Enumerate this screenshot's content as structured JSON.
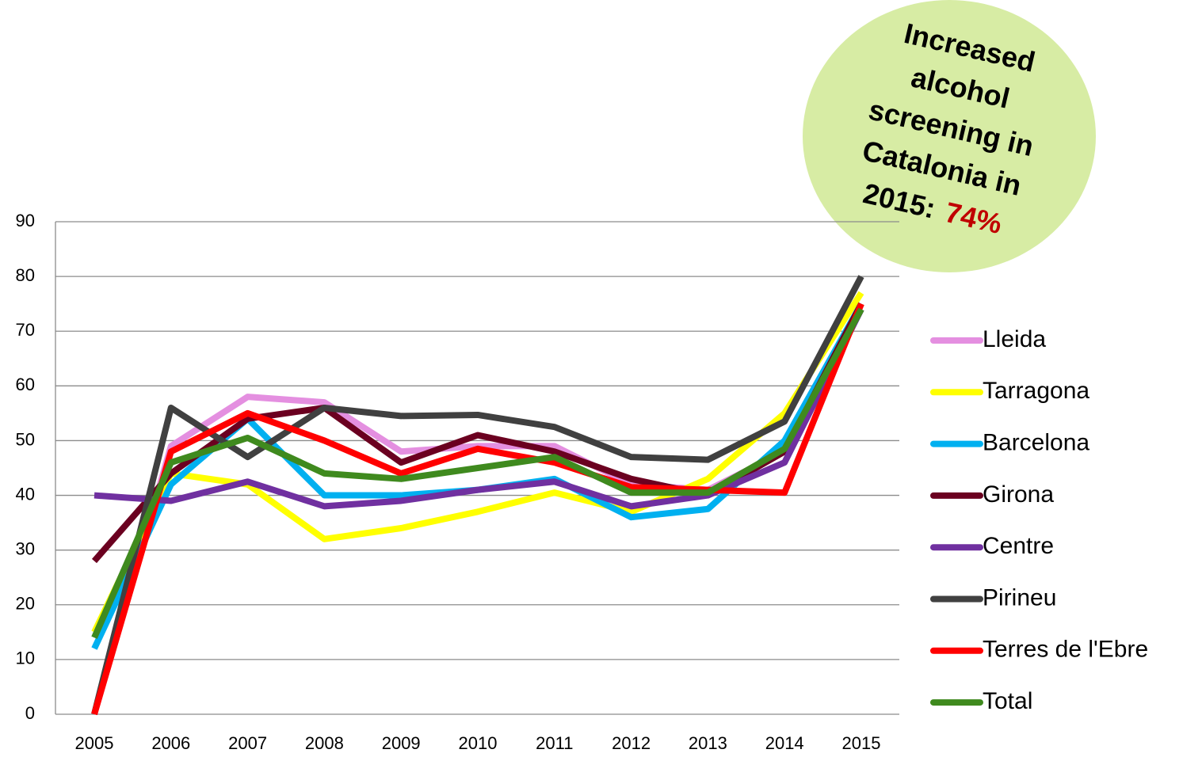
{
  "chart_data": {
    "type": "line",
    "annotation": {
      "lines": [
        "Increased",
        "alcohol",
        "screening in",
        "Catalonia in"
      ],
      "last": "2015:",
      "highlight": "74%"
    },
    "x": [
      "2005",
      "2006",
      "2007",
      "2008",
      "2009",
      "2010",
      "2011",
      "2012",
      "2013",
      "2014",
      "2015"
    ],
    "ylim": [
      0,
      90
    ],
    "yticks": [
      0,
      10,
      20,
      30,
      40,
      50,
      60,
      70,
      80,
      90
    ],
    "grid": true,
    "legend": "right",
    "series": [
      {
        "name": "Lleida",
        "color": "#e48fe0",
        "values": [
          0,
          49,
          58,
          57,
          48,
          49,
          49,
          42,
          41,
          48,
          75
        ]
      },
      {
        "name": "Tarragona",
        "color": "#ffff00",
        "values": [
          15,
          44,
          42,
          32,
          34,
          37,
          40.5,
          37,
          43,
          55,
          77
        ]
      },
      {
        "name": "Barcelona",
        "color": "#00b0f0",
        "values": [
          12,
          42,
          54,
          40,
          40,
          41,
          43,
          36,
          37.5,
          50,
          75
        ]
      },
      {
        "name": "Girona",
        "color": "#6b0020",
        "values": [
          28,
          44,
          54,
          56,
          46,
          51,
          48,
          43,
          40,
          48,
          75
        ]
      },
      {
        "name": "Centre",
        "color": "#7030a0",
        "values": [
          40,
          39,
          42.5,
          38,
          39,
          41,
          42.5,
          38,
          40,
          46,
          74
        ]
      },
      {
        "name": "Pirineu",
        "color": "#404040",
        "values": [
          0,
          56,
          47,
          56,
          54.5,
          54.7,
          52.5,
          47,
          46.5,
          53.5,
          80
        ]
      },
      {
        "name": "Terres de l'Ebre",
        "color": "#ff0000",
        "values": [
          0,
          48,
          55,
          50,
          44,
          48.5,
          46,
          41.5,
          41,
          40.5,
          75
        ]
      },
      {
        "name": "Total",
        "color": "#3f8a1e",
        "values": [
          14,
          46,
          50.5,
          44,
          43,
          45,
          47,
          40.5,
          40.5,
          48.5,
          74
        ]
      }
    ]
  }
}
